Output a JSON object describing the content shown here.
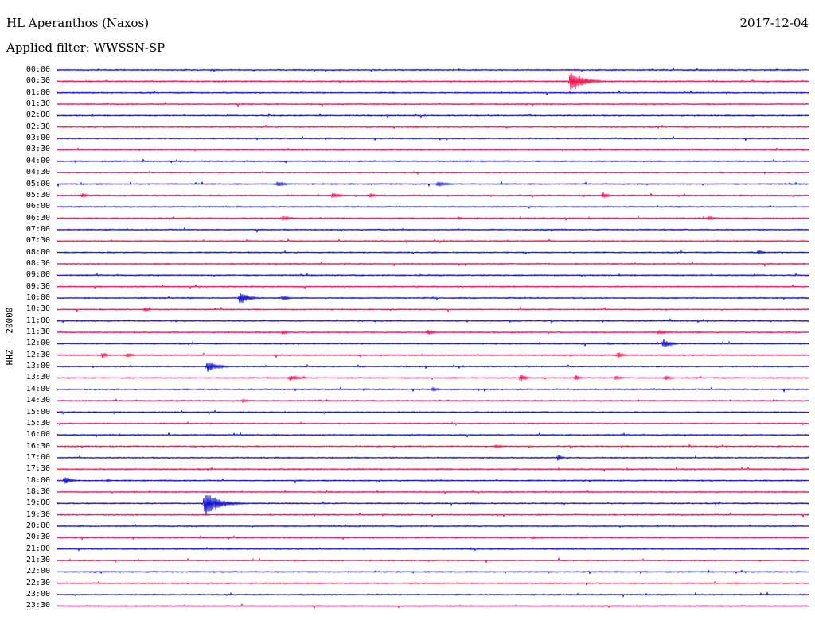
{
  "header": {
    "station": "HL Aperanthos (Naxos)",
    "filter": "Applied filter: WWSSN-SP",
    "date": "2017-12-04",
    "channel": "HHZ - 20000"
  },
  "colors": {
    "blue": "#0000cc",
    "red": "#ee0044"
  },
  "chart_data": {
    "type": "line",
    "title": "HL Aperanthos (Naxos)",
    "subtitle": "Applied filter: WWSSN-SP",
    "ylabel": "HHZ - 20000",
    "xlabel": "",
    "y_tick_labels": [
      "00:00",
      "00:30",
      "01:00",
      "01:30",
      "02:00",
      "02:30",
      "03:00",
      "03:30",
      "04:00",
      "04:30",
      "05:00",
      "05:30",
      "06:00",
      "06:30",
      "07:00",
      "07:30",
      "08:00",
      "08:30",
      "09:00",
      "09:30",
      "10:00",
      "10:30",
      "11:00",
      "11:30",
      "12:00",
      "12:30",
      "13:00",
      "13:30",
      "14:00",
      "14:30",
      "15:00",
      "15:30",
      "16:00",
      "16:30",
      "17:00",
      "17:30",
      "18:00",
      "18:30",
      "19:00",
      "19:30",
      "20:00",
      "20:30",
      "21:00",
      "21:30",
      "22:00",
      "22:30",
      "23:00",
      "23:30"
    ],
    "trace_colors": [
      "blue",
      "red"
    ],
    "trace_minutes": 30,
    "events": [
      {
        "row": "00:30",
        "minute": 20.5,
        "amplitude": 14,
        "duration": 1.4
      },
      {
        "row": "05:00",
        "minute": 8.8,
        "amplitude": 3,
        "duration": 1.0
      },
      {
        "row": "05:00",
        "minute": 15.2,
        "amplitude": 3,
        "duration": 1.2
      },
      {
        "row": "05:30",
        "minute": 1.0,
        "amplitude": 3,
        "duration": 0.6
      },
      {
        "row": "05:30",
        "minute": 11.0,
        "amplitude": 4,
        "duration": 0.8
      },
      {
        "row": "05:30",
        "minute": 12.5,
        "amplitude": 3,
        "duration": 0.6
      },
      {
        "row": "05:30",
        "minute": 21.8,
        "amplitude": 4,
        "duration": 0.6
      },
      {
        "row": "06:30",
        "minute": 9.0,
        "amplitude": 3,
        "duration": 1.2
      },
      {
        "row": "06:30",
        "minute": 16.0,
        "amplitude": 2,
        "duration": 0.6
      },
      {
        "row": "06:30",
        "minute": 26.0,
        "amplitude": 3,
        "duration": 0.8
      },
      {
        "row": "08:00",
        "minute": 28.0,
        "amplitude": 3,
        "duration": 0.6
      },
      {
        "row": "10:00",
        "minute": 7.3,
        "amplitude": 9,
        "duration": 0.9
      },
      {
        "row": "10:00",
        "minute": 9.0,
        "amplitude": 3,
        "duration": 0.8
      },
      {
        "row": "10:30",
        "minute": 3.5,
        "amplitude": 3,
        "duration": 0.6
      },
      {
        "row": "11:30",
        "minute": 9.0,
        "amplitude": 3,
        "duration": 0.6
      },
      {
        "row": "11:30",
        "minute": 14.8,
        "amplitude": 4,
        "duration": 0.6
      },
      {
        "row": "11:30",
        "minute": 24.0,
        "amplitude": 3,
        "duration": 1.0
      },
      {
        "row": "12:00",
        "minute": 24.2,
        "amplitude": 6,
        "duration": 0.8
      },
      {
        "row": "12:30",
        "minute": 1.8,
        "amplitude": 4,
        "duration": 0.5
      },
      {
        "row": "12:30",
        "minute": 2.8,
        "amplitude": 3,
        "duration": 0.7
      },
      {
        "row": "12:30",
        "minute": 22.4,
        "amplitude": 4,
        "duration": 0.6
      },
      {
        "row": "13:00",
        "minute": 6.0,
        "amplitude": 7,
        "duration": 1.2
      },
      {
        "row": "13:30",
        "minute": 9.3,
        "amplitude": 4,
        "duration": 1.0
      },
      {
        "row": "13:30",
        "minute": 18.5,
        "amplitude": 5,
        "duration": 0.6
      },
      {
        "row": "13:30",
        "minute": 20.7,
        "amplitude": 4,
        "duration": 0.5
      },
      {
        "row": "13:30",
        "minute": 22.3,
        "amplitude": 3,
        "duration": 0.6
      },
      {
        "row": "13:30",
        "minute": 24.3,
        "amplitude": 3,
        "duration": 0.6
      },
      {
        "row": "14:00",
        "minute": 15.0,
        "amplitude": 3,
        "duration": 0.6
      },
      {
        "row": "14:30",
        "minute": 7.4,
        "amplitude": 2,
        "duration": 1.0
      },
      {
        "row": "16:30",
        "minute": 17.5,
        "amplitude": 2,
        "duration": 1.2
      },
      {
        "row": "17:00",
        "minute": 20.0,
        "amplitude": 4,
        "duration": 0.5
      },
      {
        "row": "18:00",
        "minute": 0.3,
        "amplitude": 6,
        "duration": 0.7
      },
      {
        "row": "18:00",
        "minute": 2.0,
        "amplitude": 2,
        "duration": 0.5
      },
      {
        "row": "19:00",
        "minute": 5.9,
        "amplitude": 16,
        "duration": 1.6
      },
      {
        "row": "20:30",
        "minute": 19.0,
        "amplitude": 2,
        "duration": 0.6
      }
    ]
  }
}
